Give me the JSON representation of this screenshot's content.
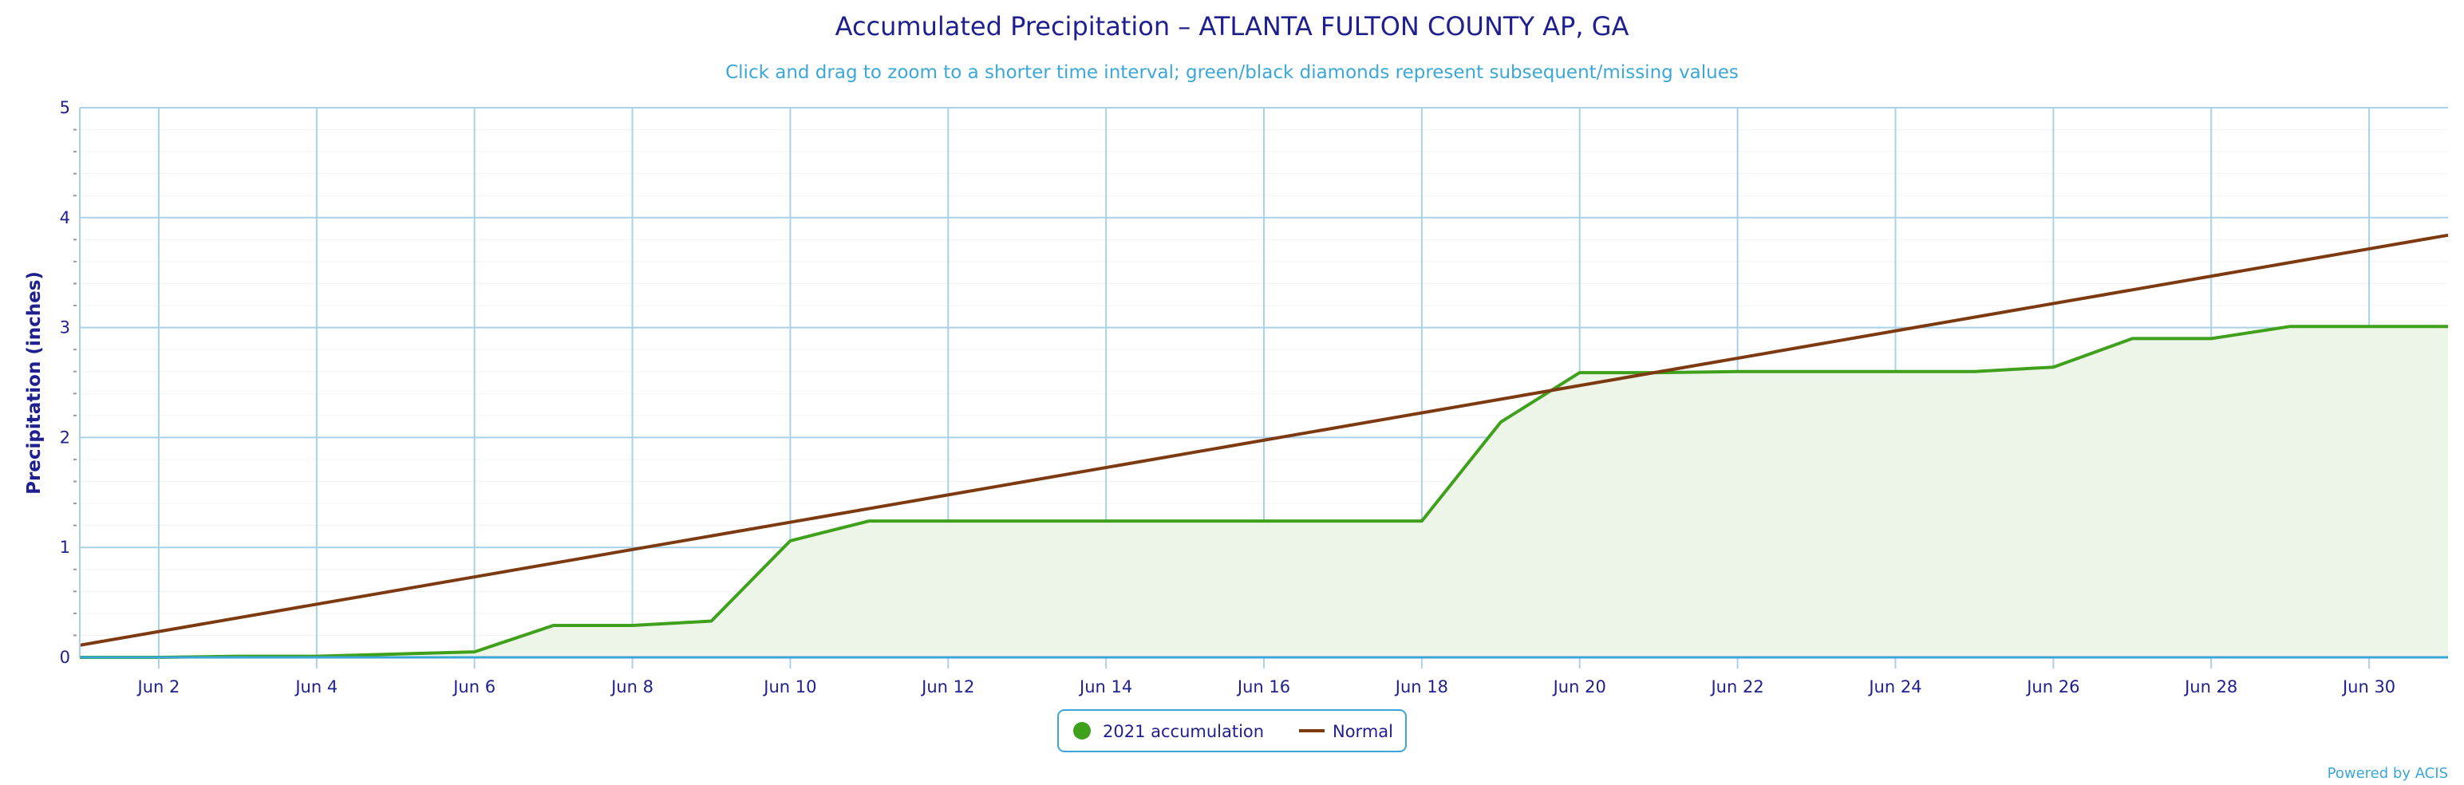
{
  "chart_data": {
    "type": "area",
    "title": "Accumulated Precipitation – ATLANTA FULTON COUNTY AP, GA",
    "subtitle": "Click and drag to zoom to a shorter time interval; green/black diamonds represent subsequent/missing values",
    "ylabel": "Precipitation (inches)",
    "xlabel": "",
    "ylim": [
      0,
      5
    ],
    "xlim": [
      1,
      31
    ],
    "yticks": [
      "0",
      "1",
      "2",
      "3",
      "4",
      "5"
    ],
    "xticks": [
      {
        "day": 2,
        "label": "Jun 2"
      },
      {
        "day": 4,
        "label": "Jun 4"
      },
      {
        "day": 6,
        "label": "Jun 6"
      },
      {
        "day": 8,
        "label": "Jun 8"
      },
      {
        "day": 10,
        "label": "Jun 10"
      },
      {
        "day": 12,
        "label": "Jun 12"
      },
      {
        "day": 14,
        "label": "Jun 14"
      },
      {
        "day": 16,
        "label": "Jun 16"
      },
      {
        "day": 18,
        "label": "Jun 18"
      },
      {
        "day": 20,
        "label": "Jun 20"
      },
      {
        "day": 22,
        "label": "Jun 22"
      },
      {
        "day": 24,
        "label": "Jun 24"
      },
      {
        "day": 26,
        "label": "Jun 26"
      },
      {
        "day": 28,
        "label": "Jun 28"
      },
      {
        "day": 30,
        "label": "Jun 30"
      }
    ],
    "grid": true,
    "legend_position": "bottom-center",
    "series": [
      {
        "name": "2021 accumulation",
        "kind": "area",
        "color": "#3fa01c",
        "fill": "#edf5e8",
        "x": [
          1,
          2,
          3,
          4,
          5,
          6,
          7,
          8,
          9,
          10,
          11,
          12,
          13,
          14,
          15,
          16,
          17,
          18,
          19,
          20,
          21,
          22,
          23,
          24,
          25,
          26,
          27,
          28,
          29,
          30
        ],
        "values": [
          0.0,
          0.0,
          0.01,
          0.01,
          0.03,
          0.05,
          0.29,
          0.29,
          0.33,
          1.06,
          1.24,
          1.24,
          1.24,
          1.24,
          1.24,
          1.24,
          1.24,
          1.24,
          2.14,
          2.59,
          2.59,
          2.6,
          2.6,
          2.6,
          2.6,
          2.64,
          2.9,
          2.9,
          3.01,
          3.01
        ]
      },
      {
        "name": "Normal",
        "kind": "line",
        "color": "#7d3a10",
        "x": [
          1,
          31
        ],
        "values": [
          0.11,
          3.84
        ]
      }
    ],
    "credit": "Powered by ACIS"
  }
}
